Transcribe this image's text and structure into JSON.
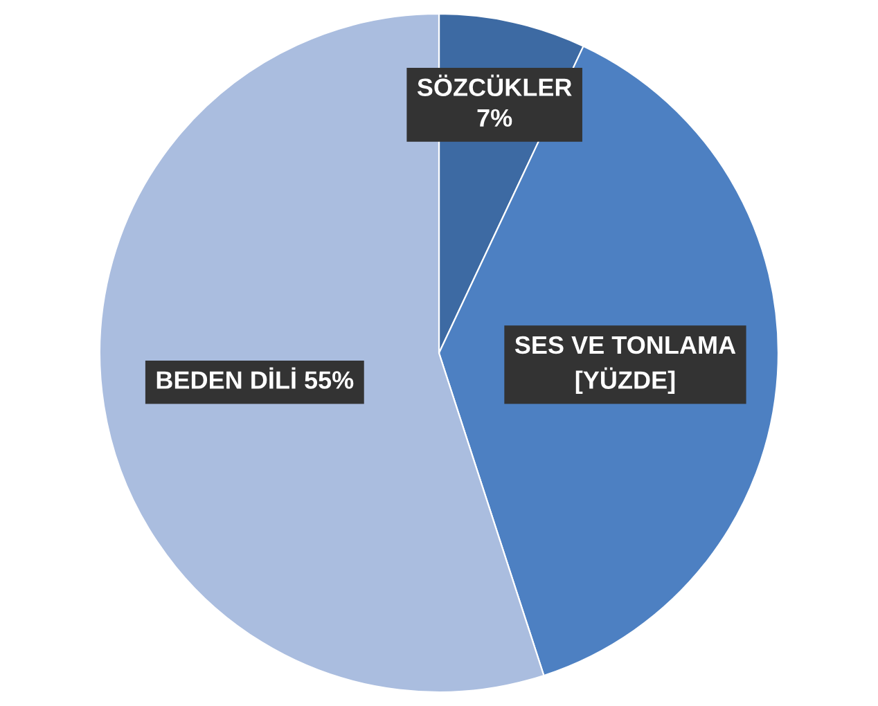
{
  "chart_data": {
    "type": "pie",
    "categories": [
      "SÖZCÜKLER",
      "SES VE TONLAMA",
      "BEDEN DİLİ"
    ],
    "values": [
      7,
      38,
      55
    ],
    "value_labels": [
      "7%",
      "[YÜZDE]",
      "55%"
    ],
    "colors": [
      "#3d6aa3",
      "#4d80c2",
      "#aabddf"
    ],
    "legend": false
  }
}
